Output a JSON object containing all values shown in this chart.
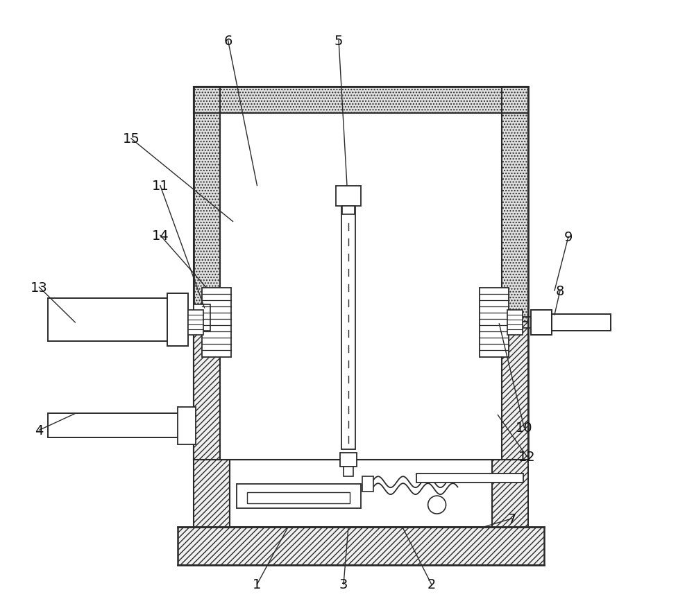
{
  "background_color": "#ffffff",
  "line_color": "#2a2a2a",
  "figsize": [
    10.0,
    8.78
  ],
  "dpi": 100,
  "annotations": [
    [
      "1",
      370,
      845,
      415,
      762
    ],
    [
      "2",
      622,
      845,
      580,
      762
    ],
    [
      "3",
      495,
      845,
      502,
      762
    ],
    [
      "4",
      55,
      622,
      107,
      598
    ],
    [
      "5",
      488,
      58,
      500,
      268
    ],
    [
      "6",
      328,
      58,
      370,
      268
    ],
    [
      "7",
      738,
      750,
      698,
      762
    ],
    [
      "8",
      808,
      420,
      800,
      455
    ],
    [
      "9",
      820,
      342,
      800,
      420
    ],
    [
      "10",
      756,
      618,
      720,
      468
    ],
    [
      "11",
      230,
      268,
      294,
      445
    ],
    [
      "12",
      760,
      660,
      718,
      600
    ],
    [
      "13",
      55,
      415,
      107,
      466
    ],
    [
      "14",
      230,
      340,
      296,
      415
    ],
    [
      "15",
      188,
      200,
      335,
      320
    ]
  ]
}
